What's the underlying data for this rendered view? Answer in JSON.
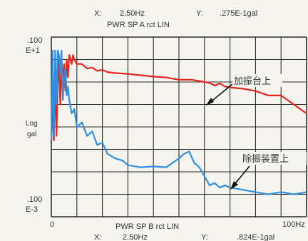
{
  "chart_data": {
    "type": "line",
    "title_top": "PWR SP A rct LIN",
    "title_bottom": "PWR SP B rct LIN",
    "cursor_top": {
      "x_label": "X:",
      "x_value": "2.50Hz",
      "y_label": "Y:",
      "y_value": ".275E-1gal"
    },
    "cursor_bottom": {
      "x_label": "X:",
      "x_value": "2.50Hz",
      "y_label": "Y:",
      "y_value": ".824E-1gal"
    },
    "ylabel_line1": "Log",
    "ylabel_line2": "gal",
    "ytick_top_line1": ".100",
    "ytick_top_line2": "E+1",
    "ytick_bottom_line1": ".100",
    "ytick_bottom_line2": "E-3",
    "xtick_left": "0",
    "xtick_right": "100Hz",
    "xlim": [
      0,
      100
    ],
    "ylim": [
      -4,
      0
    ],
    "y_scale": "log",
    "grid": true,
    "series": [
      {
        "name": "加振台上",
        "color": "#e8251c",
        "x": [
          0,
          0.5,
          1,
          1.5,
          2,
          2.5,
          3,
          3.5,
          4,
          4.5,
          5,
          5.5,
          6,
          6.5,
          7,
          7.5,
          8,
          8.5,
          9,
          10,
          12,
          14,
          16,
          18,
          20,
          22,
          25,
          30,
          35,
          40,
          45,
          50,
          55,
          60,
          62,
          64,
          66,
          68,
          70,
          75,
          80,
          85,
          90,
          95,
          100
        ],
        "y": [
          -2.3,
          -1.6,
          -2.3,
          -0.9,
          -2.2,
          -1.0,
          -0.5,
          -1.5,
          -0.7,
          -0.9,
          -0.6,
          -1.2,
          -0.5,
          -0.9,
          -0.4,
          -0.5,
          -0.6,
          -0.4,
          -0.5,
          -0.6,
          -0.6,
          -0.7,
          -0.68,
          -0.75,
          -0.73,
          -0.78,
          -0.8,
          -0.82,
          -0.85,
          -0.88,
          -0.9,
          -0.95,
          -0.95,
          -1.0,
          -1.02,
          -1.08,
          -1.03,
          -1.1,
          -1.12,
          -1.15,
          -1.2,
          -1.3,
          -1.3,
          -1.5,
          -1.7
        ]
      },
      {
        "name": "除振装置上",
        "color": "#2f8fe0",
        "x": [
          0,
          0.5,
          1,
          1.5,
          2,
          2.5,
          3,
          3.5,
          4,
          4.5,
          5,
          5.5,
          6,
          6.5,
          7,
          8,
          9,
          10,
          12,
          14,
          16,
          18,
          20,
          22,
          25,
          28,
          30,
          35,
          40,
          45,
          50,
          52,
          54,
          56,
          58,
          60,
          62,
          64,
          66,
          68,
          70,
          75,
          80,
          85,
          90,
          95,
          100
        ],
        "y": [
          -2.3,
          -0.3,
          -2.2,
          -0.3,
          -1.5,
          -0.3,
          -0.4,
          -0.8,
          -0.3,
          -1.4,
          -0.9,
          -0.7,
          -1.3,
          -1.1,
          -1.4,
          -1.7,
          -1.6,
          -2.0,
          -1.9,
          -2.2,
          -2.1,
          -2.4,
          -2.35,
          -2.6,
          -2.7,
          -2.75,
          -2.85,
          -2.9,
          -2.88,
          -2.9,
          -2.7,
          -2.6,
          -2.55,
          -2.8,
          -2.9,
          -3.1,
          -3.3,
          -3.25,
          -3.35,
          -3.3,
          -3.35,
          -3.4,
          -3.45,
          -3.5,
          -3.45,
          -3.5,
          -3.45
        ]
      }
    ],
    "annotations": [
      {
        "text": "加振台上",
        "series": 0
      },
      {
        "text": "除振装置上",
        "series": 1
      }
    ]
  }
}
